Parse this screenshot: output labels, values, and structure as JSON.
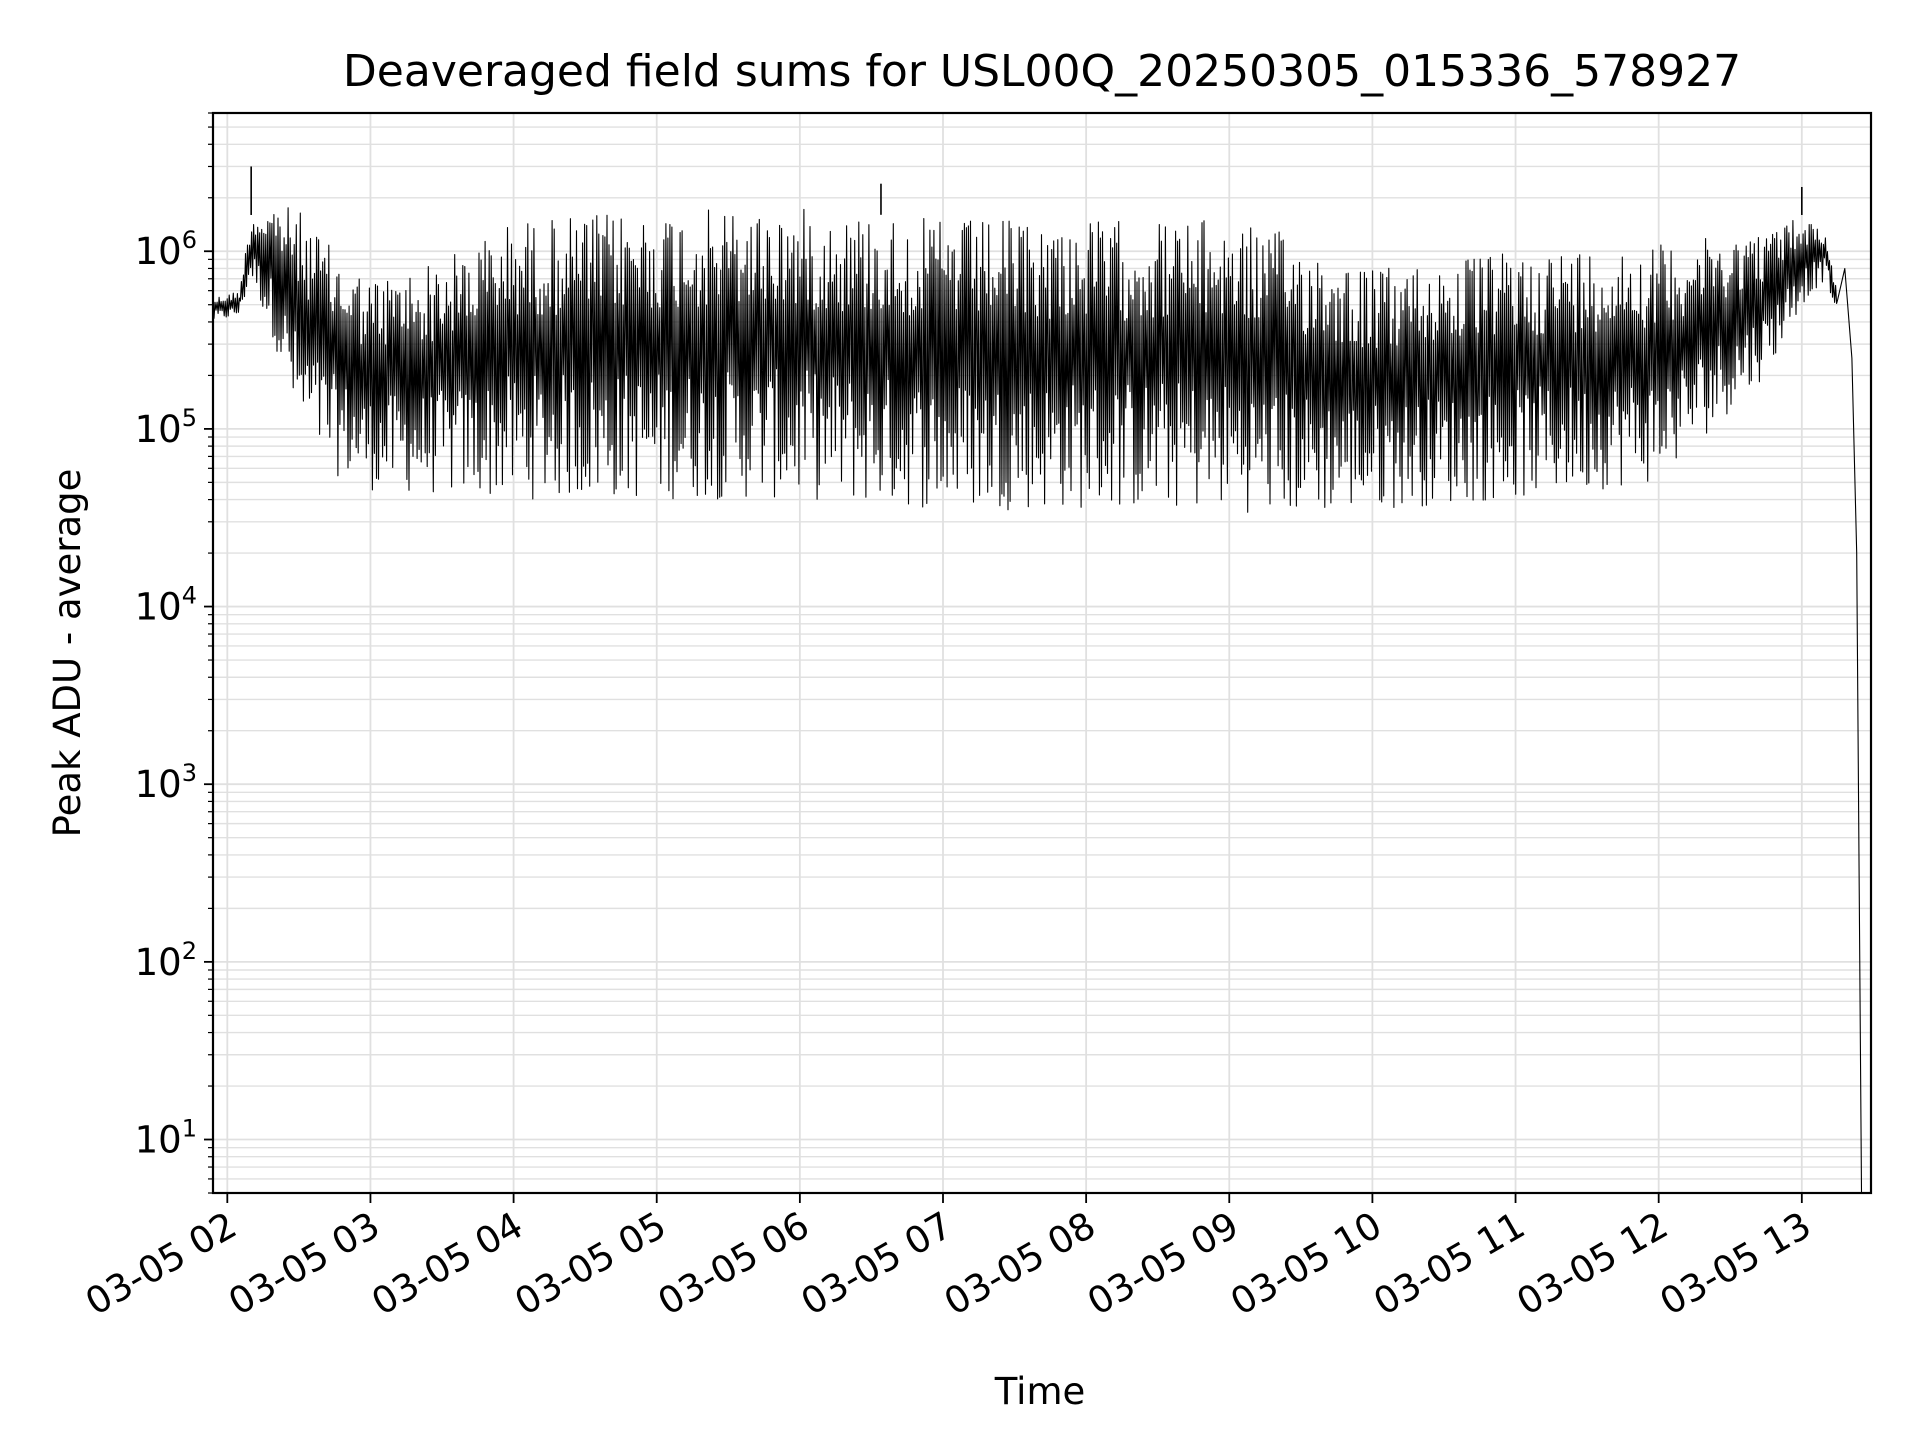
{
  "chart_data": {
    "type": "line",
    "title": "Deaveraged field sums for USL00Q_20250305_015336_578927",
    "xlabel": "Time",
    "ylabel": "Peak ADU - average",
    "yscale": "log",
    "ylim": [
      5,
      6000000
    ],
    "xlim": [
      "2025-03-05 01:54",
      "2025-03-05 13:29"
    ],
    "grid": true,
    "line_color": "#000000",
    "grid_color": "#e0e0e0",
    "x_ticks": [
      "03-05 02",
      "03-05 03",
      "03-05 04",
      "03-05 05",
      "03-05 06",
      "03-05 07",
      "03-05 08",
      "03-05 09",
      "03-05 10",
      "03-05 11",
      "03-05 12",
      "03-05 13"
    ],
    "y_ticks": [
      {
        "base": "10",
        "exp": "1",
        "value": 10
      },
      {
        "base": "10",
        "exp": "2",
        "value": 100
      },
      {
        "base": "10",
        "exp": "3",
        "value": 1000
      },
      {
        "base": "10",
        "exp": "4",
        "value": 10000
      },
      {
        "base": "10",
        "exp": "5",
        "value": 100000
      },
      {
        "base": "10",
        "exp": "6",
        "value": 1000000
      }
    ],
    "series": [
      {
        "name": "",
        "envelope": [
          {
            "time": "2025-03-05 01:54",
            "high": 550000,
            "low": 400000
          },
          {
            "time": "2025-03-05 02:05",
            "high": 600000,
            "low": 430000
          },
          {
            "time": "2025-03-05 02:10",
            "high": 1600000,
            "low": 700000
          },
          {
            "time": "2025-03-05 02:20",
            "high": 1900000,
            "low": 300000
          },
          {
            "time": "2025-03-05 02:30",
            "high": 1700000,
            "low": 90000
          },
          {
            "time": "2025-03-05 02:45",
            "high": 1000000,
            "low": 55000
          },
          {
            "time": "2025-03-05 03:00",
            "high": 700000,
            "low": 45000
          },
          {
            "time": "2025-03-05 03:30",
            "high": 900000,
            "low": 42000
          },
          {
            "time": "2025-03-05 04:00",
            "high": 1500000,
            "low": 40000
          },
          {
            "time": "2025-03-05 05:00",
            "high": 1700000,
            "low": 40000
          },
          {
            "time": "2025-03-05 06:00",
            "high": 1750000,
            "low": 40000
          },
          {
            "time": "2025-03-05 07:00",
            "high": 1500000,
            "low": 35000
          },
          {
            "time": "2025-03-05 08:00",
            "high": 1500000,
            "low": 35000
          },
          {
            "time": "2025-03-05 09:00",
            "high": 1500000,
            "low": 35000
          },
          {
            "time": "2025-03-05 09:20",
            "high": 1300000,
            "low": 32000
          },
          {
            "time": "2025-03-05 10:00",
            "high": 800000,
            "low": 35000
          },
          {
            "time": "2025-03-05 11:00",
            "high": 1000000,
            "low": 40000
          },
          {
            "time": "2025-03-05 12:00",
            "high": 1100000,
            "low": 50000
          },
          {
            "time": "2025-03-05 12:45",
            "high": 1300000,
            "low": 200000
          },
          {
            "time": "2025-03-05 13:00",
            "high": 1600000,
            "low": 500000
          },
          {
            "time": "2025-03-05 13:10",
            "high": 1300000,
            "low": 700000
          },
          {
            "time": "2025-03-05 13:20",
            "high": 250000,
            "low": 250000
          },
          {
            "time": "2025-03-05 13:25",
            "high": 5,
            "low": 5
          }
        ],
        "spikes": [
          {
            "time": "2025-03-05 02:10",
            "value": 3000000
          },
          {
            "time": "2025-03-05 06:34",
            "value": 2400000
          },
          {
            "time": "2025-03-05 13:00",
            "value": 2300000
          }
        ]
      }
    ]
  }
}
